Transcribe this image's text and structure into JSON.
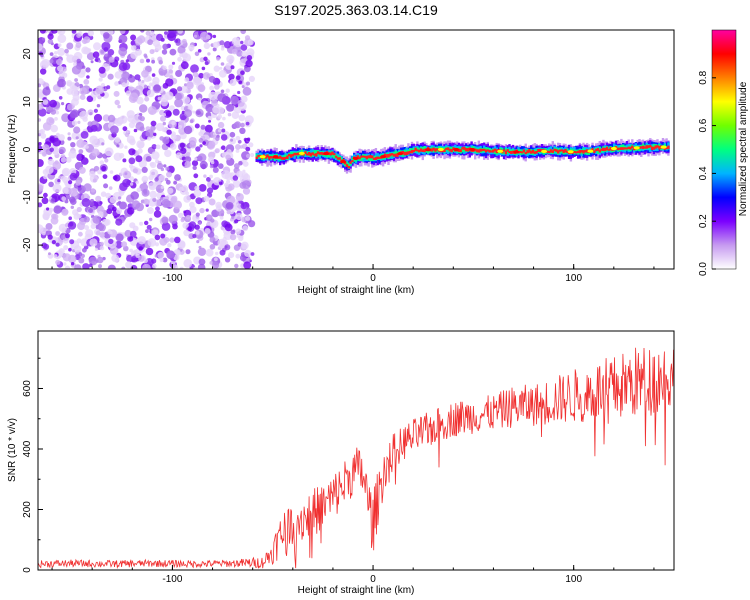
{
  "title": "S197.2025.363.03.14.C19",
  "chart_data": [
    {
      "type": "heatmap",
      "name": "spectrogram",
      "xlabel": "Height of straight line (km)",
      "ylabel": "Frequency (Hz)",
      "xlim": [
        -167,
        150
      ],
      "ylim": [
        -25,
        25
      ],
      "xticks": [
        -100,
        0,
        100
      ],
      "xtick_labels": [
        "-100",
        "0",
        "100"
      ],
      "yticks": [
        -20,
        -10,
        0,
        10,
        20
      ],
      "ytick_labels": [
        "-20",
        "-10",
        "0",
        "10",
        "20"
      ],
      "noise_region_x": [
        -167,
        -60
      ],
      "signal_track": {
        "x": [
          -58,
          -50,
          -45,
          -40,
          -35,
          -30,
          -25,
          -20,
          -15,
          -12,
          -10,
          -5,
          0,
          5,
          10,
          15,
          20,
          30,
          40,
          50,
          60,
          70,
          80,
          90,
          100,
          110,
          120,
          130,
          140,
          148
        ],
        "freq": [
          -1.5,
          -1.5,
          -1.8,
          -1.0,
          -0.8,
          -1.0,
          -0.8,
          -1.0,
          -2.5,
          -3.5,
          -2.0,
          -1.5,
          -1.8,
          -1.5,
          -1.0,
          -0.8,
          -0.2,
          0.0,
          0.0,
          0.0,
          -0.3,
          -0.5,
          -0.5,
          -0.3,
          -0.5,
          -0.3,
          0.2,
          0.3,
          0.5,
          0.5
        ]
      },
      "colorbar": {
        "label": "Normalized spectral amplitude",
        "range": [
          0,
          1
        ],
        "ticks": [
          0.0,
          0.2,
          0.4,
          0.6,
          0.8
        ],
        "tick_labels": [
          "0.0",
          "0.2",
          "0.4",
          "0.6",
          "0.8"
        ],
        "colors": [
          "#ffffff",
          "#c69af0",
          "#7b00ff",
          "#0000ff",
          "#00b4ff",
          "#00ff80",
          "#70ff00",
          "#ffff00",
          "#ff8000",
          "#ff0000",
          "#ff00a0"
        ]
      }
    },
    {
      "type": "line",
      "name": "snr",
      "xlabel": "Height of straight line (km)",
      "ylabel": "SNR (10 * v/v)",
      "xlim": [
        -167,
        150
      ],
      "ylim": [
        0,
        790
      ],
      "xticks": [
        -100,
        0,
        100
      ],
      "xtick_labels": [
        "-100",
        "0",
        "100"
      ],
      "yticks": [
        0,
        200,
        400,
        600
      ],
      "ytick_labels": [
        "0",
        "200",
        "400",
        "600"
      ],
      "color": "#f03030",
      "series": {
        "x": [
          -167,
          -150,
          -130,
          -110,
          -90,
          -70,
          -55,
          -50,
          -48,
          -45,
          -42,
          -40,
          -35,
          -30,
          -25,
          -20,
          -15,
          -12,
          -8,
          -5,
          -2,
          0,
          3,
          6,
          10,
          15,
          20,
          30,
          40,
          50,
          60,
          70,
          80,
          90,
          100,
          110,
          120,
          130,
          140,
          150
        ],
        "values": [
          20,
          22,
          20,
          22,
          20,
          22,
          25,
          60,
          90,
          120,
          150,
          160,
          170,
          190,
          210,
          240,
          280,
          310,
          330,
          320,
          210,
          150,
          260,
          340,
          390,
          420,
          440,
          470,
          500,
          510,
          520,
          540,
          545,
          560,
          575,
          590,
          600,
          620,
          630,
          640
        ],
        "noise_amp": [
          12,
          12,
          12,
          12,
          12,
          12,
          20,
          40,
          60,
          80,
          80,
          80,
          80,
          80,
          80,
          80,
          80,
          80,
          80,
          80,
          90,
          110,
          90,
          70,
          60,
          60,
          60,
          60,
          60,
          60,
          60,
          70,
          70,
          80,
          90,
          100,
          110,
          120,
          120,
          120
        ]
      }
    }
  ]
}
